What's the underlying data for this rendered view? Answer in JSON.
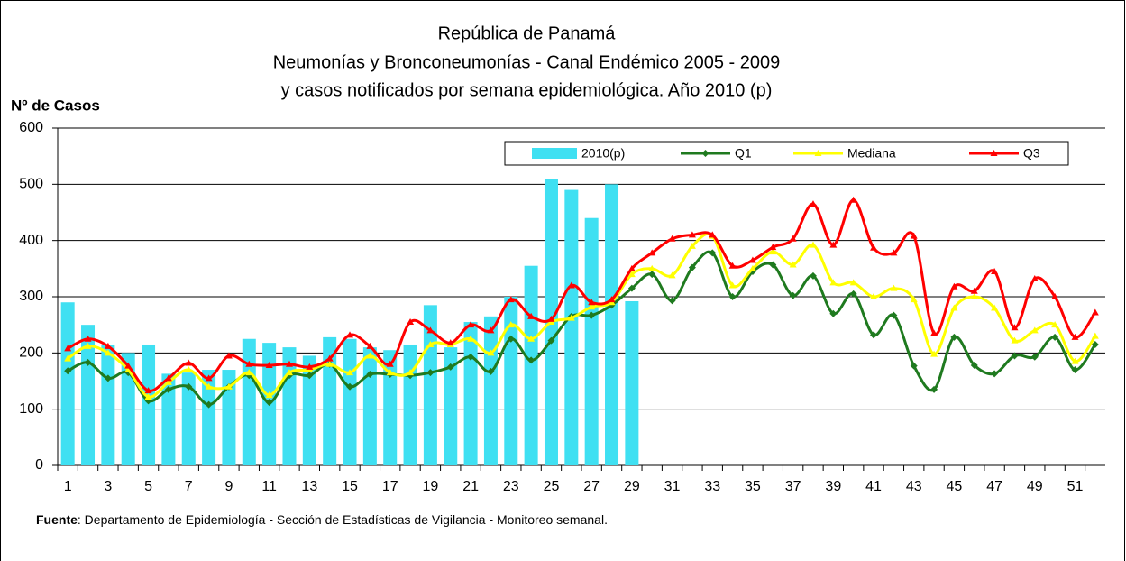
{
  "chart_data": {
    "type": "bar_line",
    "title": [
      "República de Panamá",
      "Neumonías y Bronconeumonías - Canal Endémico 2005 - 2009",
      "y casos notificados por semana epidemiológica. Año 2010 (p)"
    ],
    "y_axis_label": "Nº de Casos",
    "source_label": "Fuente",
    "source_text": ": Departamento de Epidemiología - Sección de Estadísticas de Vigilancia - Monitoreo semanal.",
    "categories": [
      "1",
      null,
      "3",
      null,
      "5",
      null,
      "7",
      null,
      "9",
      null,
      "11",
      null,
      "13",
      null,
      "15",
      null,
      "17",
      null,
      "19",
      null,
      "21",
      null,
      "23",
      null,
      "25",
      null,
      "27",
      null,
      "29",
      null,
      "31",
      null,
      "33",
      null,
      "35",
      null,
      "37",
      null,
      "39",
      null,
      "41",
      null,
      "43",
      null,
      "45",
      null,
      "47",
      null,
      "49",
      null,
      "51",
      null
    ],
    "ylim": [
      0,
      600
    ],
    "yticks": [
      0,
      100,
      200,
      300,
      400,
      500,
      600
    ],
    "grid": true,
    "legend": "top-right",
    "series": [
      {
        "name": "2010(p)",
        "kind": "bar",
        "color": "#3fe0f2",
        "values": [
          290,
          250,
          215,
          200,
          215,
          163,
          165,
          170,
          170,
          225,
          218,
          210,
          195,
          228,
          225,
          210,
          205,
          215,
          285,
          210,
          255,
          265,
          300,
          355,
          510,
          490,
          440,
          500,
          292,
          null,
          null,
          null,
          null,
          null,
          null,
          null,
          null,
          null,
          null,
          null,
          null,
          null,
          null,
          null,
          null,
          null,
          null,
          null,
          null,
          null,
          null,
          null
        ]
      },
      {
        "name": "Q1",
        "kind": "line",
        "marker": "diamond",
        "color": "#1f7a1f",
        "values": [
          168,
          183,
          155,
          165,
          115,
          135,
          140,
          108,
          140,
          160,
          112,
          160,
          160,
          180,
          140,
          162,
          162,
          160,
          165,
          175,
          193,
          167,
          225,
          187,
          222,
          265,
          267,
          285,
          315,
          340,
          293,
          352,
          378,
          300,
          345,
          357,
          302,
          337,
          270,
          305,
          232,
          267,
          177,
          135,
          228,
          178,
          163,
          195,
          193,
          228,
          170,
          215
        ]
      },
      {
        "name": "Mediana",
        "kind": "line",
        "marker": "triangle",
        "color": "#ffff00",
        "values": [
          190,
          212,
          200,
          170,
          122,
          148,
          170,
          140,
          140,
          165,
          125,
          165,
          170,
          180,
          165,
          195,
          165,
          165,
          215,
          215,
          225,
          200,
          250,
          225,
          255,
          262,
          282,
          290,
          340,
          350,
          338,
          390,
          408,
          320,
          350,
          380,
          357,
          392,
          325,
          325,
          300,
          315,
          295,
          198,
          280,
          300,
          280,
          222,
          240,
          250,
          185,
          230
        ]
      },
      {
        "name": "Q3",
        "kind": "line",
        "marker": "triangle",
        "color": "#ff0000",
        "values": [
          208,
          225,
          212,
          177,
          133,
          155,
          182,
          155,
          195,
          180,
          178,
          180,
          175,
          190,
          232,
          212,
          180,
          255,
          240,
          218,
          250,
          240,
          295,
          265,
          260,
          320,
          290,
          295,
          350,
          378,
          403,
          410,
          410,
          355,
          365,
          388,
          403,
          465,
          392,
          472,
          387,
          378,
          408,
          235,
          318,
          310,
          345,
          245,
          332,
          300,
          228,
          272
        ]
      }
    ]
  }
}
